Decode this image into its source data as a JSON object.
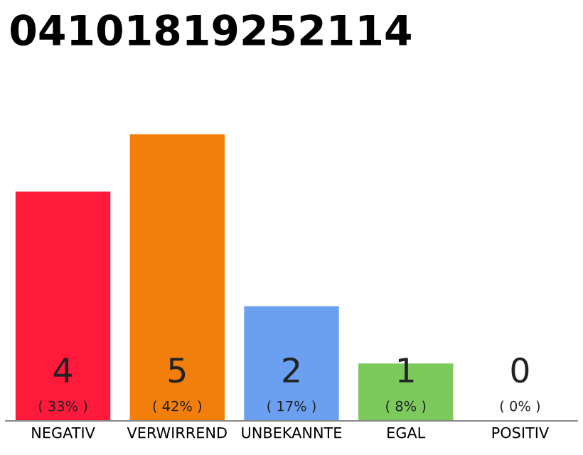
{
  "chart_data": {
    "type": "bar",
    "title": "04101819252114",
    "categories": [
      "NEGATIV",
      "VERWIRREND",
      "UNBEKANNTE",
      "EGAL",
      "POSITIV"
    ],
    "values": [
      4,
      5,
      2,
      1,
      0
    ],
    "colors": [
      "#ff1a3c",
      "#f27f0c",
      "#6b9ff0",
      "#7dca5c",
      "#cccccc"
    ],
    "value_labels": [
      "4\n( 33% )",
      "5\n( 42% )",
      "2\n( 17% )",
      "1\n( 8% )",
      "0\n( 0% )"
    ],
    "ylim": [
      0,
      5
    ],
    "tick_labels": "x",
    "grid": false,
    "legend": false
  }
}
